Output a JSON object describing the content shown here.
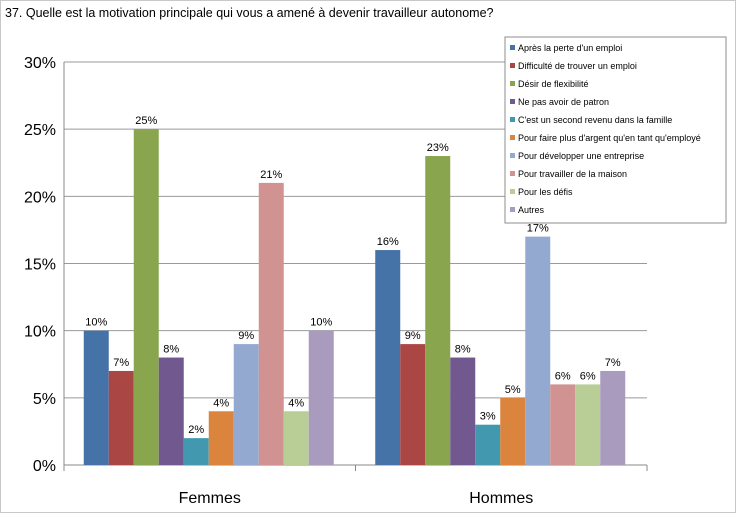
{
  "question": "37. Quelle est la motivation principale qui vous a amené à devenir travailleur autonome?",
  "chart_data": {
    "type": "bar",
    "title": "37. Quelle est la motivation principale qui vous a amené à devenir travailleur autonome?",
    "xlabel": "",
    "ylabel": "",
    "ylim": [
      0,
      30
    ],
    "yticks": [
      "0%",
      "5%",
      "10%",
      "15%",
      "20%",
      "25%",
      "30%"
    ],
    "ytick_values": [
      0,
      5,
      10,
      15,
      20,
      25,
      30
    ],
    "grid": true,
    "legend_position": "top-right",
    "categories": [
      "Femmes",
      "Hommes"
    ],
    "series": [
      {
        "name": "Après la perte d'un emploi",
        "color": "#4572A7",
        "values": [
          10,
          16
        ],
        "labels": [
          "10%",
          "16%"
        ]
      },
      {
        "name": "Difficulté de trouver un emploi",
        "color": "#AA4643",
        "values": [
          7,
          9
        ],
        "labels": [
          "7%",
          "9%"
        ]
      },
      {
        "name": "Désir de flexibilité",
        "color": "#89A54E",
        "values": [
          25,
          23
        ],
        "labels": [
          "25%",
          "23%"
        ]
      },
      {
        "name": "Ne pas avoir de patron",
        "color": "#71588F",
        "values": [
          8,
          8
        ],
        "labels": [
          "8%",
          "8%"
        ]
      },
      {
        "name": "C'est un second revenu dans la famille",
        "color": "#4198AF",
        "values": [
          2,
          3
        ],
        "labels": [
          "2%",
          "3%"
        ]
      },
      {
        "name": "Pour faire plus d'argent qu'en tant qu'employé",
        "color": "#DB843D",
        "values": [
          4,
          5
        ],
        "labels": [
          "4%",
          "5%"
        ]
      },
      {
        "name": "Pour développer une entreprise",
        "color": "#93A9CF",
        "values": [
          9,
          17
        ],
        "labels": [
          "9%",
          "17%"
        ]
      },
      {
        "name": "Pour travailler de la maison",
        "color": "#D19392",
        "values": [
          21,
          6
        ],
        "labels": [
          "21%",
          "6%"
        ]
      },
      {
        "name": "Pour les défis",
        "color": "#B9CD96",
        "values": [
          4,
          6
        ],
        "labels": [
          "4%",
          "6%"
        ]
      },
      {
        "name": "Autres",
        "color": "#A99BBD",
        "values": [
          10,
          7
        ],
        "labels": [
          "10%",
          "7%"
        ]
      }
    ]
  }
}
